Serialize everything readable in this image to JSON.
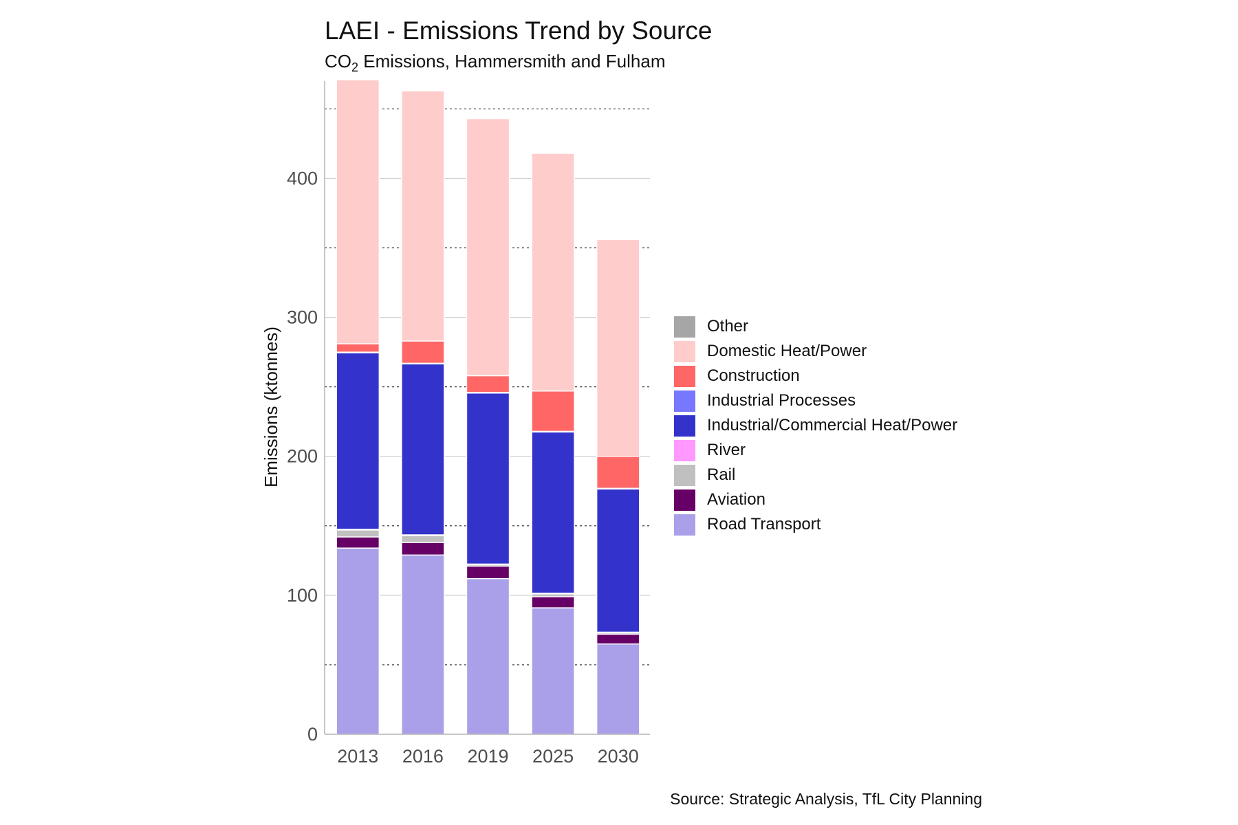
{
  "chart_data": {
    "type": "bar",
    "stacked": true,
    "title": "LAEI - Emissions Trend by Source",
    "subtitle": {
      "pre": "CO",
      "sub": "2",
      "post": " Emissions, Hammersmith and Fulham"
    },
    "ylabel": "Emissions (ktonnes)",
    "xlabel": "",
    "caption": "Source: Strategic Analysis, TfL City Planning",
    "ylim": [
      0,
      470
    ],
    "yticks": [
      0,
      100,
      200,
      300,
      400
    ],
    "categories": [
      "2013",
      "2016",
      "2019",
      "2025",
      "2030"
    ],
    "legend_position": "right",
    "legend_order": [
      "Other",
      "Domestic Heat/Power",
      "Construction",
      "Industrial Processes",
      "Industrial/Commercial Heat/Power",
      "River",
      "Rail",
      "Aviation",
      "Road Transport"
    ],
    "series": [
      {
        "name": "Road Transport",
        "color": "#aaa0e9",
        "values": [
          134,
          129,
          112,
          91,
          65
        ]
      },
      {
        "name": "Aviation",
        "color": "#660066",
        "values": [
          8,
          9,
          9,
          8,
          7
        ]
      },
      {
        "name": "Rail",
        "color": "#c0c0c0",
        "values": [
          5,
          5,
          1,
          2,
          1
        ]
      },
      {
        "name": "River",
        "color": "#ff99ff",
        "values": [
          0.5,
          0.5,
          0.5,
          0.5,
          0.5
        ]
      },
      {
        "name": "Industrial/Commercial Heat/Power",
        "color": "#3333cc",
        "values": [
          127,
          123,
          123,
          116,
          103
        ]
      },
      {
        "name": "Industrial Processes",
        "color": "#7777ff",
        "values": [
          0.5,
          0.5,
          0.5,
          0.5,
          0.5
        ]
      },
      {
        "name": "Construction",
        "color": "#ff6666",
        "values": [
          6,
          16,
          12,
          29,
          23
        ]
      },
      {
        "name": "Domestic Heat/Power",
        "color": "#ffcccc",
        "values": [
          190,
          180,
          185,
          171,
          156
        ]
      },
      {
        "name": "Other",
        "color": "#a6a6a6",
        "values": [
          0,
          0,
          0,
          0,
          0
        ]
      }
    ]
  }
}
